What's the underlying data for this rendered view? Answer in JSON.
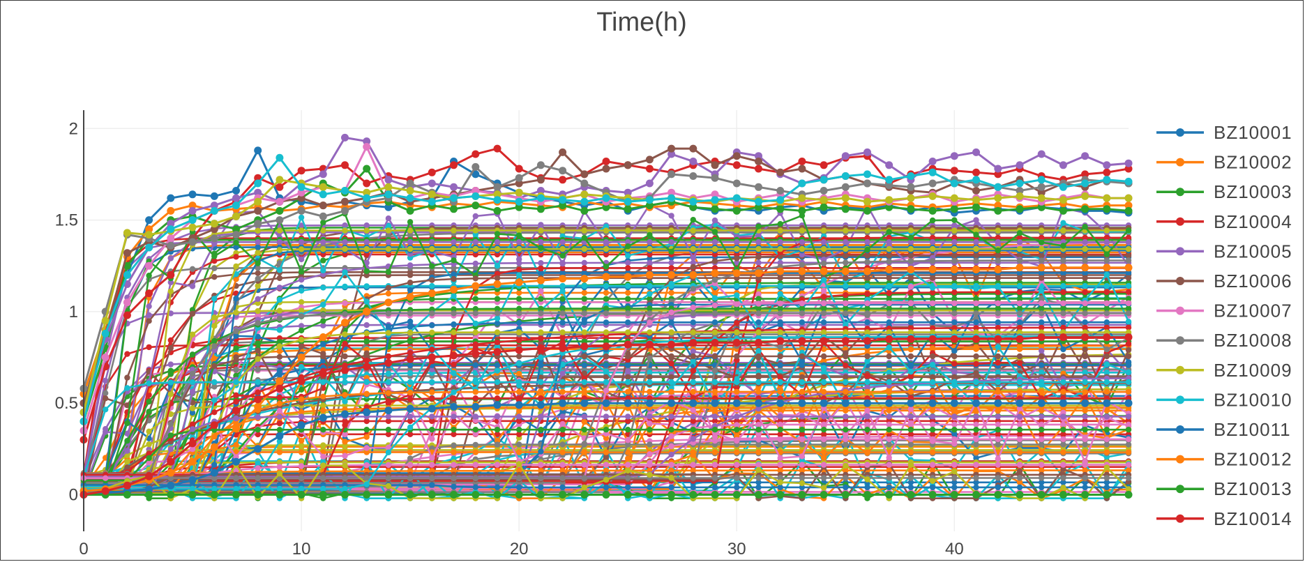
{
  "chart_data": {
    "type": "line",
    "title": "Time(h)",
    "xlabel": "",
    "ylabel": "",
    "xlim": [
      0,
      48
    ],
    "ylim": [
      -0.2,
      2.1
    ],
    "x_ticks": [
      0,
      10,
      20,
      30,
      40
    ],
    "y_ticks": [
      0,
      0.5,
      1,
      1.5,
      2
    ],
    "y_tick_labels": [
      "0",
      "0.5",
      "1",
      "1.5",
      "2"
    ],
    "grid": true,
    "legend_position": "right",
    "x": [
      0,
      1,
      2,
      3,
      4,
      5,
      6,
      7,
      8,
      9,
      10,
      11,
      12,
      13,
      14,
      15,
      16,
      17,
      18,
      19,
      20,
      21,
      22,
      23,
      24,
      25,
      26,
      27,
      28,
      29,
      30,
      31,
      32,
      33,
      34,
      35,
      36,
      37,
      38,
      39,
      40,
      41,
      42,
      43,
      44,
      45,
      46,
      47,
      48
    ],
    "series": [
      {
        "name": "BZ10001",
        "color": "#1f77b4",
        "values": [
          0.5,
          0.9,
          1.2,
          1.5,
          1.62,
          1.64,
          1.63,
          1.66,
          1.88,
          1.62,
          1.6,
          1.58,
          1.6,
          1.58,
          1.57,
          1.6,
          1.62,
          1.82,
          1.75,
          1.7,
          1.65,
          1.62,
          1.6,
          1.58,
          1.6,
          1.55,
          1.58,
          1.6,
          1.57,
          1.55,
          1.56,
          1.55,
          1.57,
          1.58,
          1.55,
          1.57,
          1.56,
          1.58,
          1.55,
          1.57,
          1.54,
          1.55,
          1.56,
          1.55,
          1.57,
          1.56,
          1.55,
          1.55,
          1.54
        ]
      },
      {
        "name": "BZ10002",
        "color": "#ff7f0e",
        "values": [
          0.55,
          0.9,
          1.3,
          1.45,
          1.55,
          1.58,
          1.55,
          1.56,
          1.57,
          1.55,
          1.56,
          1.58,
          1.57,
          1.59,
          1.6,
          1.58,
          1.57,
          1.59,
          1.58,
          1.6,
          1.59,
          1.58,
          1.57,
          1.6,
          1.58,
          1.59,
          1.57,
          1.58,
          1.6,
          1.59,
          1.58,
          1.57,
          1.59,
          1.58,
          1.6,
          1.58,
          1.57,
          1.59,
          1.58,
          1.57,
          1.58,
          1.59,
          1.58,
          1.57,
          1.58,
          1.59,
          1.57,
          1.58,
          1.58
        ]
      },
      {
        "name": "BZ10003",
        "color": "#2ca02c",
        "values": [
          0.4,
          0.8,
          1.25,
          1.4,
          1.5,
          1.52,
          1.48,
          1.45,
          1.5,
          1.55,
          1.62,
          1.7,
          1.65,
          1.78,
          1.6,
          1.55,
          1.58,
          1.56,
          1.58,
          1.55,
          1.57,
          1.56,
          1.58,
          1.55,
          1.57,
          1.56,
          1.58,
          1.6,
          1.57,
          1.56,
          1.55,
          1.57,
          1.56,
          1.55,
          1.57,
          1.56,
          1.55,
          1.57,
          1.56,
          1.55,
          1.56,
          1.57,
          1.55,
          1.56,
          1.57,
          1.55,
          1.56,
          1.56,
          1.55
        ]
      },
      {
        "name": "BZ10004",
        "color": "#d62728",
        "values": [
          0.3,
          0.7,
          0.98,
          1.1,
          1.2,
          1.4,
          1.55,
          1.6,
          1.73,
          1.68,
          1.77,
          1.78,
          1.8,
          1.7,
          1.74,
          1.72,
          1.76,
          1.8,
          1.86,
          1.89,
          1.78,
          1.73,
          1.72,
          1.75,
          1.82,
          1.8,
          1.78,
          1.76,
          1.8,
          1.82,
          1.8,
          1.78,
          1.76,
          1.82,
          1.8,
          1.84,
          1.85,
          1.7,
          1.75,
          1.78,
          1.77,
          1.76,
          1.75,
          1.78,
          1.74,
          1.72,
          1.75,
          1.76,
          1.78
        ]
      },
      {
        "name": "BZ10005",
        "color": "#9467bd",
        "values": [
          0.45,
          0.85,
          1.15,
          1.35,
          1.48,
          1.55,
          1.58,
          1.62,
          1.65,
          1.6,
          1.7,
          1.75,
          1.95,
          1.93,
          1.72,
          1.68,
          1.7,
          1.68,
          1.66,
          1.65,
          1.62,
          1.66,
          1.64,
          1.68,
          1.66,
          1.65,
          1.7,
          1.86,
          1.82,
          1.75,
          1.87,
          1.85,
          1.75,
          1.7,
          1.73,
          1.85,
          1.87,
          1.8,
          1.72,
          1.82,
          1.85,
          1.87,
          1.78,
          1.8,
          1.86,
          1.8,
          1.85,
          1.8,
          1.81
        ]
      },
      {
        "name": "BZ10006",
        "color": "#8c564b",
        "values": [
          0.5,
          0.88,
          1.32,
          1.38,
          1.35,
          1.4,
          1.45,
          1.52,
          1.55,
          1.6,
          1.62,
          1.58,
          1.6,
          1.62,
          1.65,
          1.6,
          1.62,
          1.64,
          1.66,
          1.68,
          1.7,
          1.72,
          1.87,
          1.75,
          1.78,
          1.8,
          1.83,
          1.89,
          1.89,
          1.8,
          1.85,
          1.82,
          1.76,
          1.78,
          1.72,
          1.74,
          1.7,
          1.68,
          1.66,
          1.65,
          1.7,
          1.66,
          1.68,
          1.72,
          1.65,
          1.7,
          1.68,
          1.72,
          1.7
        ]
      },
      {
        "name": "BZ10007",
        "color": "#e377c2",
        "values": [
          0.35,
          0.75,
          1.05,
          1.25,
          1.4,
          1.5,
          1.55,
          1.58,
          1.62,
          1.6,
          1.65,
          1.68,
          1.66,
          1.9,
          1.64,
          1.62,
          1.65,
          1.63,
          1.66,
          1.64,
          1.62,
          1.6,
          1.62,
          1.64,
          1.6,
          1.62,
          1.63,
          1.65,
          1.62,
          1.64,
          1.6,
          1.62,
          1.64,
          1.6,
          1.62,
          1.64,
          1.62,
          1.6,
          1.62,
          1.64,
          1.6,
          1.62,
          1.64,
          1.62,
          1.6,
          1.62,
          1.64,
          1.62,
          1.62
        ]
      },
      {
        "name": "BZ10008",
        "color": "#7f7f7f",
        "values": [
          0.58,
          1.0,
          1.42,
          1.4,
          1.36,
          1.38,
          1.4,
          1.42,
          1.48,
          1.5,
          1.55,
          1.52,
          1.55,
          1.6,
          1.62,
          1.7,
          1.65,
          1.6,
          1.79,
          1.68,
          1.73,
          1.8,
          1.77,
          1.7,
          1.65,
          1.6,
          1.62,
          1.75,
          1.74,
          1.73,
          1.7,
          1.68,
          1.66,
          1.64,
          1.66,
          1.68,
          1.7,
          1.69,
          1.68,
          1.7,
          1.72,
          1.7,
          1.68,
          1.66,
          1.68,
          1.7,
          1.72,
          1.71,
          1.7
        ]
      },
      {
        "name": "BZ10009",
        "color": "#bcbd22",
        "values": [
          0.45,
          0.95,
          1.43,
          1.42,
          1.44,
          1.46,
          1.48,
          1.52,
          1.6,
          1.72,
          1.7,
          1.68,
          1.66,
          1.65,
          1.68,
          1.66,
          1.64,
          1.62,
          1.63,
          1.64,
          1.65,
          1.63,
          1.62,
          1.64,
          1.63,
          1.62,
          1.61,
          1.62,
          1.61,
          1.6,
          1.62,
          1.61,
          1.6,
          1.62,
          1.61,
          1.62,
          1.6,
          1.61,
          1.62,
          1.63,
          1.62,
          1.61,
          1.62,
          1.63,
          1.62,
          1.61,
          1.63,
          1.62,
          1.62
        ]
      },
      {
        "name": "BZ10010",
        "color": "#17becf",
        "values": [
          0.4,
          0.88,
          1.2,
          1.35,
          1.45,
          1.5,
          1.55,
          1.58,
          1.7,
          1.84,
          1.68,
          1.64,
          1.66,
          1.62,
          1.64,
          1.62,
          1.6,
          1.62,
          1.63,
          1.61,
          1.6,
          1.62,
          1.61,
          1.6,
          1.62,
          1.6,
          1.61,
          1.62,
          1.6,
          1.61,
          1.62,
          1.6,
          1.61,
          1.7,
          1.72,
          1.74,
          1.75,
          1.72,
          1.74,
          1.76,
          1.7,
          1.72,
          1.68,
          1.7,
          1.72,
          1.68,
          1.7,
          1.72,
          1.71
        ]
      },
      {
        "name": "BZ10011",
        "color": "#1f77b4",
        "values": [
          0.0,
          0.01,
          0.02,
          0.03,
          0.05,
          0.08,
          0.12,
          0.18,
          0.25,
          0.32,
          0.38,
          0.42,
          0.44,
          0.45,
          0.46,
          0.47,
          0.47,
          0.48,
          0.48,
          0.49,
          0.49,
          0.49,
          0.5,
          0.5,
          0.5,
          0.5,
          0.5,
          0.5,
          0.5,
          0.5,
          0.5,
          0.5,
          0.5,
          0.5,
          0.5,
          0.5,
          0.5,
          0.5,
          0.5,
          0.5,
          0.5,
          0.5,
          0.5,
          0.5,
          0.5,
          0.5,
          0.5,
          0.5,
          0.5
        ]
      },
      {
        "name": "BZ10012",
        "color": "#ff7f0e",
        "values": [
          0.02,
          0.03,
          0.05,
          0.08,
          0.12,
          0.18,
          0.26,
          0.36,
          0.48,
          0.62,
          0.75,
          0.86,
          0.94,
          1.0,
          1.05,
          1.08,
          1.1,
          1.12,
          1.14,
          1.15,
          1.16,
          1.17,
          1.18,
          1.18,
          1.19,
          1.19,
          1.2,
          1.2,
          1.2,
          1.21,
          1.21,
          1.21,
          1.22,
          1.22,
          1.22,
          1.22,
          1.22,
          1.23,
          1.23,
          1.23,
          1.23,
          1.23,
          1.23,
          1.24,
          1.24,
          1.24,
          1.24,
          1.24,
          1.24
        ]
      },
      {
        "name": "BZ10013",
        "color": "#2ca02c",
        "values": [
          0.0,
          0.0,
          0.0,
          0.0,
          0.0,
          0.0,
          0.0,
          0.0,
          0.0,
          0.0,
          0.0,
          0.0,
          0.0,
          0.0,
          0.0,
          0.0,
          0.0,
          0.0,
          0.0,
          0.0,
          0.0,
          0.0,
          0.0,
          0.0,
          0.0,
          0.0,
          0.0,
          0.0,
          0.0,
          0.0,
          0.0,
          0.0,
          0.0,
          0.0,
          0.0,
          0.0,
          0.0,
          0.0,
          0.0,
          0.0,
          0.0,
          0.0,
          0.0,
          0.0,
          0.0,
          0.0,
          0.0,
          0.0,
          0.0
        ]
      },
      {
        "name": "BZ10014",
        "color": "#d62728",
        "values": [
          0.0,
          0.02,
          0.05,
          0.1,
          0.18,
          0.28,
          0.38,
          0.46,
          0.52,
          0.58,
          0.62,
          0.66,
          0.68,
          0.7,
          0.72,
          0.74,
          0.75,
          0.76,
          0.77,
          0.78,
          0.79,
          0.8,
          0.8,
          0.81,
          0.81,
          0.82,
          0.82,
          0.82,
          0.83,
          0.83,
          0.83,
          0.83,
          0.84,
          0.84,
          0.84,
          0.84,
          0.84,
          0.85,
          0.85,
          0.85,
          0.85,
          0.85,
          0.85,
          0.85,
          0.86,
          0.86,
          0.86,
          0.86,
          0.86
        ]
      }
    ]
  }
}
